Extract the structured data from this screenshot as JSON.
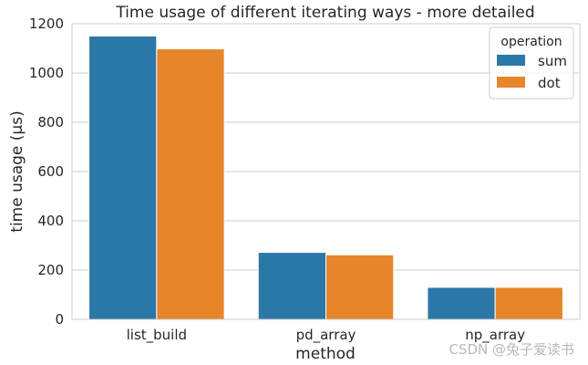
{
  "chart_data": {
    "type": "bar",
    "title": "Time usage of different iterating ways - more detailed",
    "xlabel": "method",
    "ylabel": "time usage (μs)",
    "categories": [
      "list_build",
      "pd_array",
      "np_array"
    ],
    "series": [
      {
        "name": "sum",
        "values": [
          1150,
          272,
          130
        ],
        "color": "#2b77a8"
      },
      {
        "name": "dot",
        "values": [
          1098,
          262,
          130
        ],
        "color": "#e6852a"
      }
    ],
    "ylim": [
      0,
      1200
    ],
    "yticks": [
      0,
      200,
      400,
      600,
      800,
      1000,
      1200
    ],
    "grid": "horizontal",
    "legend": {
      "title": "operation",
      "placement": "top-right"
    }
  },
  "watermark": "CSDN @兔子爱读书"
}
